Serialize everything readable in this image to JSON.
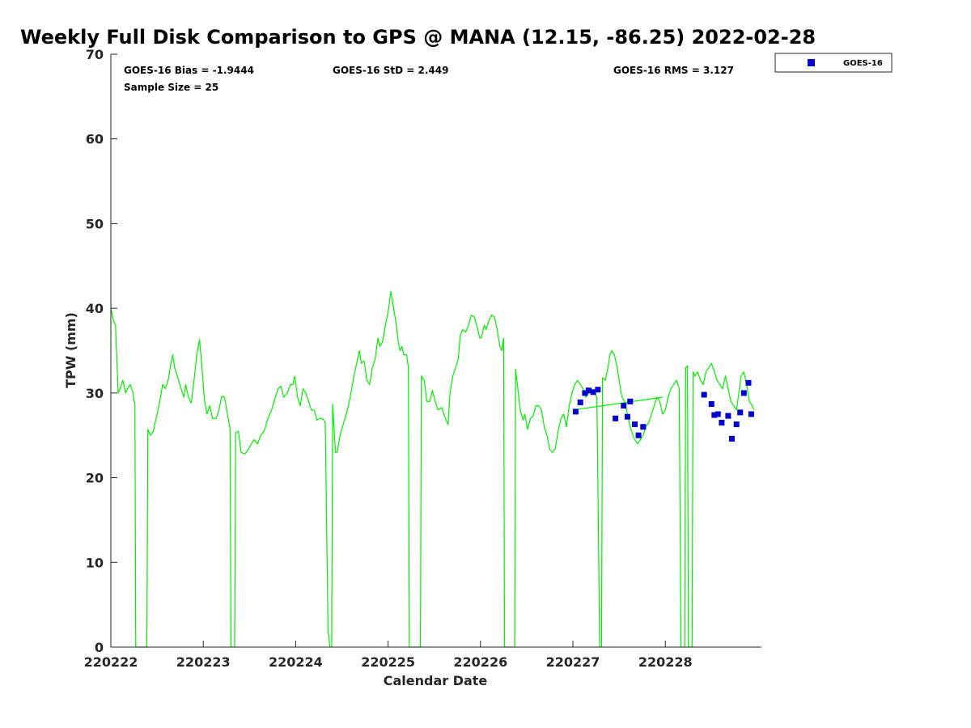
{
  "chart_data": {
    "type": "scatter",
    "title": "Weekly Full Disk Comparison to GPS @ MANA (12.15, -86.25) 2022-02-28",
    "xlabel": "Calendar Date",
    "ylabel": "TPW (mm)",
    "xlim": [
      0,
      7.04
    ],
    "ylim": [
      0,
      70
    ],
    "x_tick_values": [
      0,
      1,
      2,
      3,
      4,
      5,
      6
    ],
    "x_tick_labels": [
      "220222",
      "220223",
      "220224",
      "220225",
      "220226",
      "220227",
      "220228"
    ],
    "y_ticks": [
      0,
      10,
      20,
      30,
      40,
      50,
      60,
      70
    ],
    "stats": {
      "bias": "GOES-16 Bias = -1.9444",
      "std": "GOES-16 StD = 2.449",
      "rms": "GOES-16 RMS = 3.127",
      "sample": "Sample Size = 25"
    },
    "legend": {
      "position": "top-right-outside",
      "label": "GOES-16"
    },
    "colors": {
      "gps_line": "#00ee00",
      "goes_marker": "#0000cc",
      "axis": "#262626"
    },
    "series": [
      {
        "name": "GPS",
        "type": "line",
        "points": [
          [
            0.0,
            40.0
          ],
          [
            0.03,
            38.5
          ],
          [
            0.05,
            38.0
          ],
          [
            0.08,
            30.0
          ],
          [
            0.1,
            30.5
          ],
          [
            0.13,
            31.5
          ],
          [
            0.16,
            30.0
          ],
          [
            0.18,
            30.5
          ],
          [
            0.21,
            31.0
          ],
          [
            0.24,
            30.0
          ],
          [
            0.26,
            28.5
          ],
          [
            0.27,
            0
          ],
          [
            0.39,
            0
          ],
          [
            0.4,
            25.7
          ],
          [
            0.43,
            25.0
          ],
          [
            0.46,
            25.5
          ],
          [
            0.5,
            27.5
          ],
          [
            0.53,
            29.0
          ],
          [
            0.56,
            31.0
          ],
          [
            0.59,
            30.5
          ],
          [
            0.62,
            31.5
          ],
          [
            0.65,
            33.5
          ],
          [
            0.67,
            34.5
          ],
          [
            0.69,
            33.0
          ],
          [
            0.72,
            32.0
          ],
          [
            0.76,
            30.5
          ],
          [
            0.79,
            29.5
          ],
          [
            0.81,
            31.0
          ],
          [
            0.84,
            29.5
          ],
          [
            0.87,
            28.8
          ],
          [
            0.9,
            31.5
          ],
          [
            0.93,
            34.5
          ],
          [
            0.96,
            36.3
          ],
          [
            0.99,
            32.5
          ],
          [
            1.01,
            29.5
          ],
          [
            1.04,
            27.5
          ],
          [
            1.07,
            28.5
          ],
          [
            1.1,
            27.0
          ],
          [
            1.14,
            27.0
          ],
          [
            1.17,
            28.0
          ],
          [
            1.2,
            29.6
          ],
          [
            1.23,
            29.5
          ],
          [
            1.27,
            27.0
          ],
          [
            1.29,
            25.8
          ],
          [
            1.3,
            0
          ],
          [
            1.34,
            0
          ],
          [
            1.35,
            25.3
          ],
          [
            1.38,
            25.5
          ],
          [
            1.41,
            23.0
          ],
          [
            1.45,
            22.8
          ],
          [
            1.48,
            23.2
          ],
          [
            1.52,
            24.0
          ],
          [
            1.55,
            24.5
          ],
          [
            1.59,
            24.0
          ],
          [
            1.62,
            25.0
          ],
          [
            1.66,
            25.5
          ],
          [
            1.7,
            27.0
          ],
          [
            1.74,
            28.0
          ],
          [
            1.78,
            29.5
          ],
          [
            1.81,
            30.5
          ],
          [
            1.84,
            30.8
          ],
          [
            1.87,
            29.5
          ],
          [
            1.91,
            30.0
          ],
          [
            1.94,
            31.0
          ],
          [
            1.97,
            31.0
          ],
          [
            1.99,
            32.0
          ],
          [
            2.02,
            29.5
          ],
          [
            2.05,
            28.5
          ],
          [
            2.08,
            30.5
          ],
          [
            2.11,
            30.0
          ],
          [
            2.14,
            29.0
          ],
          [
            2.17,
            28.0
          ],
          [
            2.2,
            28.0
          ],
          [
            2.23,
            26.8
          ],
          [
            2.26,
            27.0
          ],
          [
            2.29,
            27.0
          ],
          [
            2.32,
            26.5
          ],
          [
            2.35,
            2.0
          ],
          [
            2.37,
            0
          ],
          [
            2.39,
            0
          ],
          [
            2.4,
            28.7
          ],
          [
            2.43,
            23.0
          ],
          [
            2.45,
            23.0
          ],
          [
            2.48,
            25.0
          ],
          [
            2.52,
            26.5
          ],
          [
            2.56,
            28.0
          ],
          [
            2.59,
            29.5
          ],
          [
            2.63,
            32.0
          ],
          [
            2.66,
            33.5
          ],
          [
            2.69,
            35.0
          ],
          [
            2.71,
            33.5
          ],
          [
            2.74,
            33.8
          ],
          [
            2.77,
            31.5
          ],
          [
            2.8,
            31.0
          ],
          [
            2.83,
            33.0
          ],
          [
            2.86,
            34.0
          ],
          [
            2.89,
            36.5
          ],
          [
            2.91,
            35.5
          ],
          [
            2.94,
            36.0
          ],
          [
            2.97,
            38.0
          ],
          [
            3.0,
            39.5
          ],
          [
            3.03,
            42.0
          ],
          [
            3.06,
            40.0
          ],
          [
            3.09,
            38.0
          ],
          [
            3.11,
            36.0
          ],
          [
            3.13,
            35.0
          ],
          [
            3.15,
            35.5
          ],
          [
            3.17,
            34.5
          ],
          [
            3.2,
            34.5
          ],
          [
            3.22,
            33.0
          ],
          [
            3.23,
            0
          ],
          [
            3.35,
            0
          ],
          [
            3.36,
            32.0
          ],
          [
            3.39,
            31.5
          ],
          [
            3.42,
            29.0
          ],
          [
            3.45,
            29.0
          ],
          [
            3.48,
            30.3
          ],
          [
            3.51,
            29.0
          ],
          [
            3.54,
            28.0
          ],
          [
            3.58,
            28.3
          ],
          [
            3.62,
            27.0
          ],
          [
            3.65,
            26.3
          ],
          [
            3.67,
            30.0
          ],
          [
            3.7,
            32.0
          ],
          [
            3.73,
            33.0
          ],
          [
            3.76,
            34.0
          ],
          [
            3.78,
            36.8
          ],
          [
            3.81,
            37.5
          ],
          [
            3.84,
            37.2
          ],
          [
            3.87,
            38.0
          ],
          [
            3.9,
            39.2
          ],
          [
            3.93,
            39.0
          ],
          [
            3.96,
            38.0
          ],
          [
            3.99,
            36.5
          ],
          [
            4.01,
            36.5
          ],
          [
            4.04,
            38.0
          ],
          [
            4.06,
            37.5
          ],
          [
            4.09,
            38.5
          ],
          [
            4.12,
            39.2
          ],
          [
            4.15,
            39.0
          ],
          [
            4.18,
            37.5
          ],
          [
            4.21,
            35.5
          ],
          [
            4.23,
            35.0
          ],
          [
            4.25,
            36.5
          ],
          [
            4.26,
            0
          ],
          [
            4.37,
            0
          ],
          [
            4.38,
            32.8
          ],
          [
            4.41,
            30.0
          ],
          [
            4.43,
            28.0
          ],
          [
            4.46,
            26.8
          ],
          [
            4.48,
            27.5
          ],
          [
            4.51,
            25.7
          ],
          [
            4.54,
            27.0
          ],
          [
            4.57,
            27.3
          ],
          [
            4.6,
            28.5
          ],
          [
            4.63,
            28.5
          ],
          [
            4.66,
            28.0
          ],
          [
            4.69,
            26.0
          ],
          [
            4.72,
            25.0
          ],
          [
            4.75,
            23.3
          ],
          [
            4.78,
            23.0
          ],
          [
            4.81,
            23.5
          ],
          [
            4.84,
            25.5
          ],
          [
            4.87,
            27.0
          ],
          [
            4.9,
            27.5
          ],
          [
            4.93,
            26.0
          ],
          [
            4.96,
            28.5
          ],
          [
            4.99,
            30.0
          ],
          [
            5.02,
            31.0
          ],
          [
            5.05,
            31.5
          ],
          [
            5.08,
            31.0
          ],
          [
            5.11,
            30.5
          ],
          [
            5.14,
            29.5
          ],
          [
            5.17,
            30.0
          ],
          [
            5.2,
            30.5
          ],
          [
            5.23,
            30.0
          ],
          [
            5.26,
            29.5
          ],
          [
            5.29,
            0
          ],
          [
            5.3,
            0
          ],
          [
            5.31,
            0
          ],
          [
            5.32,
            31.8
          ],
          [
            5.35,
            31.5
          ],
          [
            5.38,
            33.0
          ],
          [
            5.4,
            34.5
          ],
          [
            5.42,
            35.0
          ],
          [
            5.45,
            34.5
          ],
          [
            5.48,
            33.0
          ],
          [
            5.5,
            31.5
          ],
          [
            5.53,
            29.5
          ],
          [
            5.56,
            29.0
          ],
          [
            5.59,
            27.5
          ],
          [
            5.62,
            26.0
          ],
          [
            5.65,
            25.0
          ],
          [
            5.67,
            24.5
          ],
          [
            5.7,
            24.0
          ],
          [
            5.73,
            24.5
          ],
          [
            5.76,
            25.0
          ],
          [
            5.79,
            26.0
          ],
          [
            5.82,
            26.5
          ],
          [
            5.85,
            27.5
          ],
          [
            5.88,
            28.5
          ],
          [
            5.91,
            29.5
          ],
          [
            5.94,
            29.0
          ],
          [
            5.97,
            27.5
          ],
          [
            6.0,
            28.0
          ],
          [
            6.03,
            29.5
          ],
          [
            6.06,
            30.5
          ],
          [
            6.09,
            31.0
          ],
          [
            6.12,
            31.5
          ],
          [
            6.15,
            30.5
          ],
          [
            6.17,
            0
          ],
          [
            6.21,
            0
          ],
          [
            6.22,
            33.0
          ],
          [
            6.24,
            33.2
          ],
          [
            6.25,
            0
          ],
          [
            6.29,
            0
          ],
          [
            6.3,
            32.5
          ],
          [
            6.32,
            32.0
          ],
          [
            6.35,
            32.5
          ],
          [
            6.38,
            31.5
          ],
          [
            6.41,
            31.0
          ],
          [
            6.44,
            32.5
          ],
          [
            6.47,
            33.0
          ],
          [
            6.5,
            33.5
          ],
          [
            6.53,
            32.5
          ],
          [
            6.56,
            31.5
          ],
          [
            6.59,
            31.0
          ],
          [
            6.62,
            30.5
          ],
          [
            6.65,
            32.0
          ],
          [
            6.68,
            30.5
          ],
          [
            6.71,
            29.0
          ],
          [
            6.74,
            28.5
          ],
          [
            6.77,
            28.0
          ],
          [
            6.79,
            29.5
          ],
          [
            6.82,
            32.0
          ],
          [
            6.85,
            32.5
          ],
          [
            6.88,
            31.0
          ],
          [
            6.91,
            29.0
          ],
          [
            6.94,
            28.5
          ],
          [
            6.96,
            28.0
          ]
        ]
      },
      {
        "name": "GPS (connector)",
        "type": "line",
        "points": [
          [
            5.0,
            28.0
          ],
          [
            5.97,
            29.5
          ]
        ]
      },
      {
        "name": "GOES-16",
        "type": "scatter",
        "points": [
          [
            5.03,
            27.8
          ],
          [
            5.08,
            28.9
          ],
          [
            5.13,
            30.0
          ],
          [
            5.17,
            30.3
          ],
          [
            5.22,
            30.1
          ],
          [
            5.27,
            30.4
          ],
          [
            5.46,
            27.0
          ],
          [
            5.55,
            28.5
          ],
          [
            5.59,
            27.2
          ],
          [
            5.62,
            29.0
          ],
          [
            5.67,
            26.3
          ],
          [
            5.71,
            25.0
          ],
          [
            5.76,
            26.0
          ],
          [
            6.42,
            29.8
          ],
          [
            6.5,
            28.7
          ],
          [
            6.53,
            27.4
          ],
          [
            6.57,
            27.5
          ],
          [
            6.61,
            26.5
          ],
          [
            6.68,
            27.3
          ],
          [
            6.72,
            24.6
          ],
          [
            6.77,
            26.3
          ],
          [
            6.81,
            27.7
          ],
          [
            6.85,
            30.0
          ],
          [
            6.9,
            31.2
          ],
          [
            6.93,
            27.5
          ]
        ]
      }
    ]
  }
}
